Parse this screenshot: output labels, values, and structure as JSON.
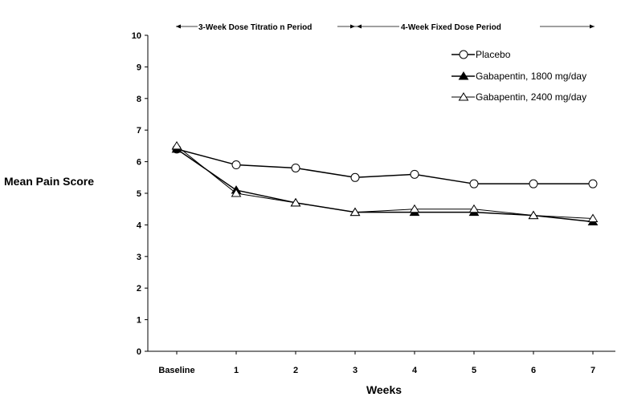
{
  "chart_data": {
    "type": "line",
    "xlabel": "Weeks",
    "ylabel": "Mean Pain Score",
    "categories": [
      "Baseline",
      "1",
      "2",
      "3",
      "4",
      "5",
      "6",
      "7"
    ],
    "ylim": [
      0,
      10
    ],
    "yticks": [
      "0",
      "1",
      "2",
      "3",
      "4",
      "5",
      "6",
      "7",
      "8",
      "9",
      "10"
    ],
    "grid": false,
    "legend_position": "top-right",
    "period_labels": {
      "titration": "3-Week Dose Titratio  n Period",
      "fixed": "4-Week Fixed Dose Period"
    },
    "series": [
      {
        "name": "Placebo",
        "marker": "open-circle",
        "values": [
          6.4,
          5.9,
          5.8,
          5.5,
          5.6,
          5.3,
          5.3,
          5.3
        ]
      },
      {
        "name": "Gabapentin, 1800 mg/day",
        "marker": "filled-triangle",
        "values": [
          6.4,
          5.1,
          4.7,
          4.4,
          4.4,
          4.4,
          4.3,
          4.1
        ]
      },
      {
        "name": "Gabapentin, 2400 mg/day",
        "marker": "open-triangle",
        "values": [
          6.5,
          5.0,
          4.7,
          4.4,
          4.5,
          4.5,
          4.3,
          4.2
        ]
      }
    ]
  }
}
